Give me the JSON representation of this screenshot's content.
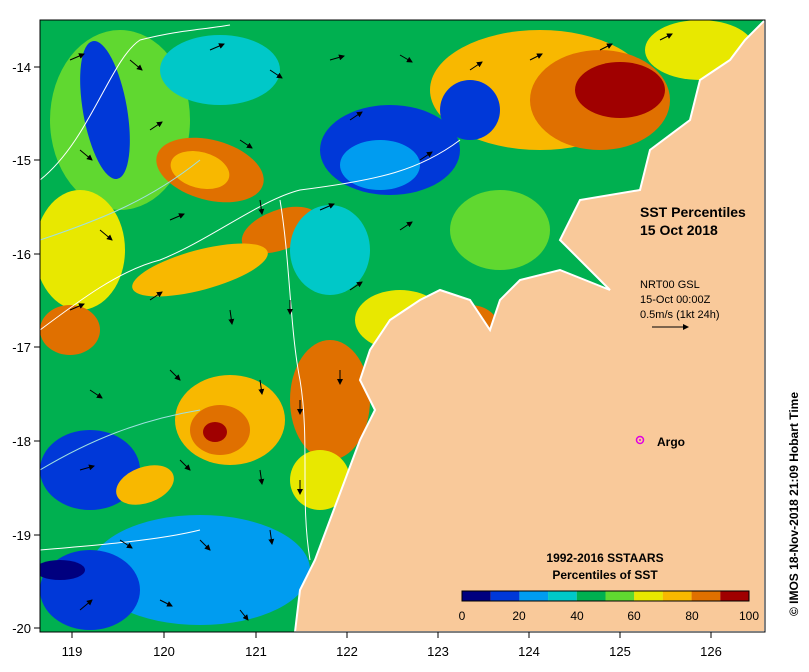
{
  "map": {
    "title_line1": "SST Percentiles",
    "title_line2": "15 Oct 2018",
    "current_source": "NRT00 GSL",
    "current_time": "15-Oct 00:00Z",
    "current_scale": "0.5m/s (1kt 24h)",
    "argo_label": "Argo",
    "credit": "© IMOS 18-Nov-2018 21:09 Hobart Time",
    "land_color": "#f9c99a",
    "coast_color": "#ffffff"
  },
  "axes": {
    "x_ticks": [
      "119",
      "120",
      "121",
      "122",
      "123",
      "124",
      "125",
      "126"
    ],
    "y_ticks": [
      "-14",
      "-15",
      "-16",
      "-17",
      "-18",
      "-19",
      "-20"
    ]
  },
  "colorbar": {
    "title_line1": "1992-2016 SSTAARS",
    "title_line2": "Percentiles of SST",
    "ticks": [
      "0",
      "20",
      "40",
      "60",
      "80",
      "100"
    ],
    "colors": [
      "#00007f",
      "#0038d8",
      "#009cf0",
      "#00c8c8",
      "#00b050",
      "#60d830",
      "#e8e800",
      "#f8b800",
      "#e07000",
      "#a00000"
    ]
  }
}
